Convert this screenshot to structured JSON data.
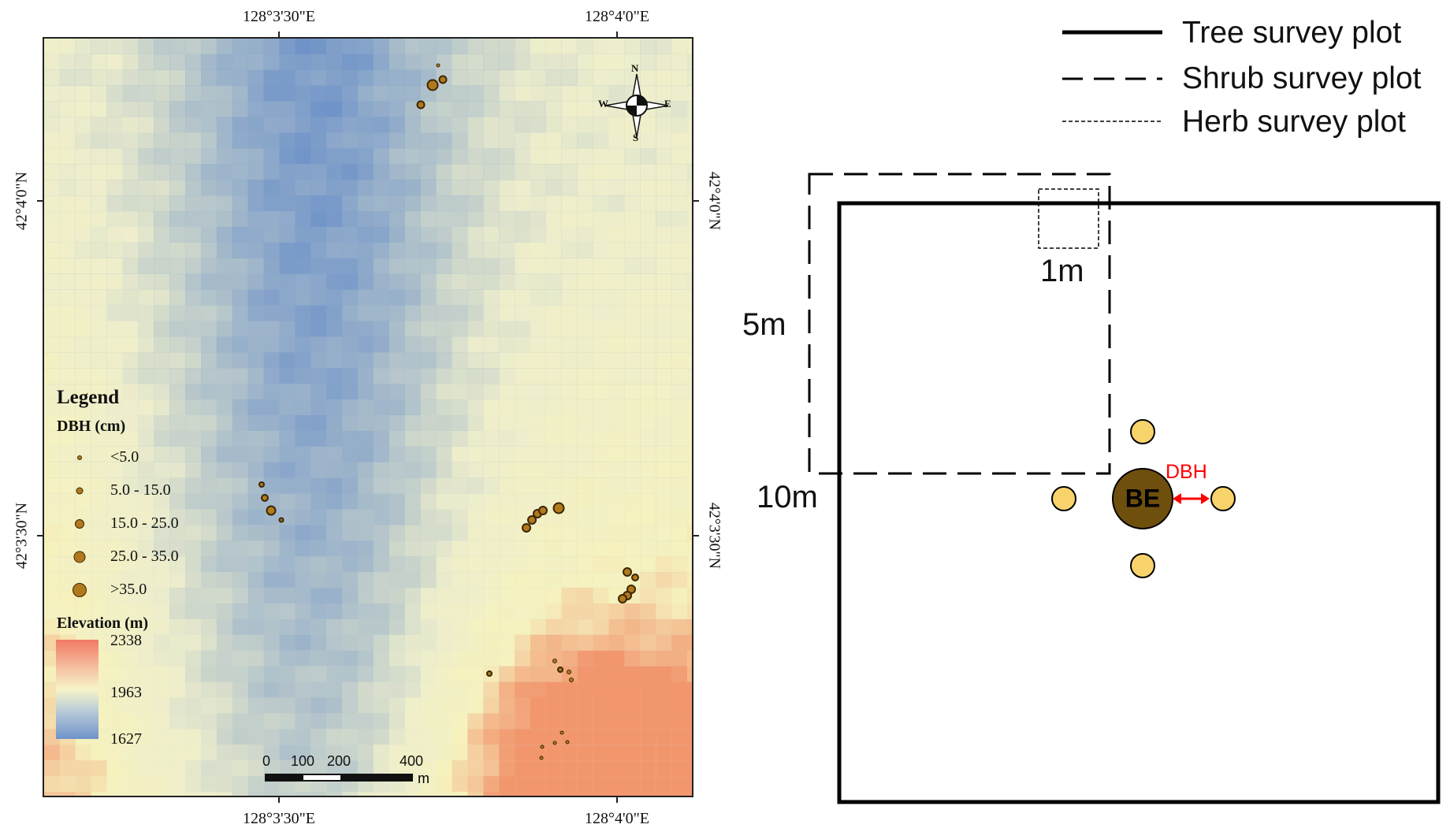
{
  "map": {
    "coords_top": [
      "128°3'30\"E",
      "128°4'0\"E"
    ],
    "coords_bottom": [
      "128°3'30\"E",
      "128°4'0\"E"
    ],
    "coords_left": [
      "42°4'0\"N",
      "42°3'30\"N"
    ],
    "coords_right": [
      "42°4'0\"N",
      "42°3'30\"N"
    ],
    "compass": {
      "n": "N",
      "s": "S",
      "e": "E",
      "w": "W"
    },
    "legend": {
      "title": "Legend",
      "dbh_title": "DBH (cm)",
      "dbh_classes": [
        "<5.0",
        "5.0 - 15.0",
        "15.0 - 25.0",
        "25.0 - 35.0",
        ">35.0"
      ],
      "elevation_title": "Elevation (m)",
      "elevation_values": [
        "2338",
        "1963",
        "1627"
      ],
      "ramp_colors": {
        "high": "#f27a63",
        "mid": "#f6f4c8",
        "low": "#6f93c9"
      }
    },
    "scale_bar": {
      "labels": [
        "0",
        "100",
        "200",
        "400"
      ],
      "unit": "m"
    },
    "point_color": "#b07a1c"
  },
  "diagram": {
    "legend": [
      {
        "label": "Tree survey plot"
      },
      {
        "label": "Shrub survey plot"
      },
      {
        "label": "Herb survey plot"
      }
    ],
    "herb_size_label": "1m",
    "shrub_size_label": "5m",
    "tree_size_label": "10m",
    "center_label": "BE",
    "dbh_label": "DBH",
    "center_color": "#6e4f0e",
    "neighbor_color": "#f8d36b",
    "dbh_arrow_color": "#ff0000"
  }
}
